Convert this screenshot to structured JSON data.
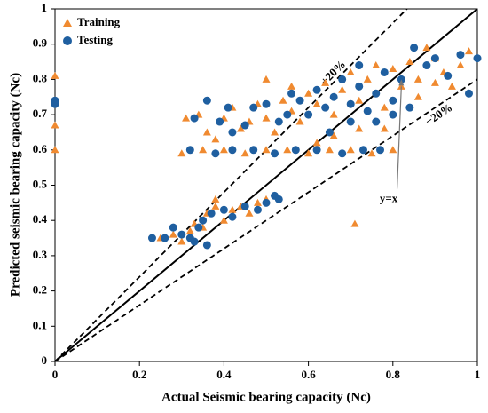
{
  "chart_data": {
    "type": "scatter",
    "xlabel": "Actual Seismic bearing capacity (Nc)",
    "ylabel": "Predicted seismic bearing capacity (Nc)",
    "xlim": [
      0,
      1
    ],
    "ylim": [
      0,
      1
    ],
    "xticks": [
      0,
      0.2,
      0.4,
      0.6,
      0.8,
      1
    ],
    "yticks": [
      0,
      0.1,
      0.2,
      0.3,
      0.4,
      0.5,
      0.6,
      0.7,
      0.8,
      0.9,
      1
    ],
    "legend": "upper left",
    "reference_lines": [
      {
        "slope": 1,
        "dashed": false
      },
      {
        "slope": 1.2,
        "dashed": true,
        "label": "+20%"
      },
      {
        "slope": 0.8,
        "dashed": true,
        "label": "−20%"
      }
    ],
    "annotation": "y=x",
    "series": [
      {
        "name": "Training",
        "color": "#f08a30",
        "marker": "triangle",
        "x": [
          0,
          0,
          0,
          0.25,
          0.28,
          0.3,
          0.32,
          0.35,
          0.36,
          0.38,
          0.4,
          0.42,
          0.44,
          0.46,
          0.48,
          0.5,
          0.38,
          0.33,
          0.3,
          0.35,
          0.4,
          0.45,
          0.5,
          0.55,
          0.6,
          0.65,
          0.7,
          0.75,
          0.8,
          0.31,
          0.34,
          0.36,
          0.38,
          0.4,
          0.42,
          0.44,
          0.46,
          0.48,
          0.5,
          0.52,
          0.54,
          0.56,
          0.58,
          0.6,
          0.62,
          0.64,
          0.66,
          0.68,
          0.7,
          0.72,
          0.74,
          0.76,
          0.78,
          0.8,
          0.82,
          0.84,
          0.86,
          0.88,
          0.9,
          0.92,
          0.94,
          0.96,
          0.98,
          0.5,
          0.56,
          0.66,
          0.72,
          0.71,
          0.78,
          0.62,
          0.86,
          0.9
        ],
        "y": [
          0.6,
          0.67,
          0.81,
          0.35,
          0.36,
          0.34,
          0.37,
          0.38,
          0.42,
          0.44,
          0.4,
          0.43,
          0.44,
          0.42,
          0.45,
          0.46,
          0.46,
          0.39,
          0.59,
          0.6,
          0.6,
          0.59,
          0.6,
          0.6,
          0.59,
          0.6,
          0.6,
          0.59,
          0.6,
          0.69,
          0.7,
          0.65,
          0.63,
          0.69,
          0.72,
          0.66,
          0.68,
          0.73,
          0.69,
          0.65,
          0.74,
          0.71,
          0.68,
          0.76,
          0.73,
          0.79,
          0.7,
          0.77,
          0.82,
          0.74,
          0.8,
          0.84,
          0.72,
          0.83,
          0.78,
          0.85,
          0.8,
          0.89,
          0.86,
          0.82,
          0.78,
          0.84,
          0.88,
          0.8,
          0.78,
          0.64,
          0.66,
          0.39,
          0.66,
          0.62,
          0.75,
          0.79
        ]
      },
      {
        "name": "Testing",
        "color": "#1f5fa0",
        "marker": "circle",
        "x": [
          0,
          0,
          0.23,
          0.26,
          0.28,
          0.3,
          0.32,
          0.34,
          0.35,
          0.37,
          0.4,
          0.42,
          0.45,
          0.48,
          0.5,
          0.52,
          0.53,
          0.36,
          0.33,
          0.32,
          0.38,
          0.42,
          0.47,
          0.52,
          0.57,
          0.62,
          0.68,
          0.73,
          0.77,
          0.33,
          0.36,
          0.39,
          0.41,
          0.45,
          0.47,
          0.5,
          0.53,
          0.55,
          0.58,
          0.6,
          0.62,
          0.64,
          0.66,
          0.68,
          0.7,
          0.72,
          0.74,
          0.76,
          0.78,
          0.8,
          0.82,
          0.84,
          0.85,
          0.88,
          0.9,
          0.93,
          0.96,
          0.98,
          1,
          0.72,
          0.7,
          0.76,
          0.8,
          0.65,
          0.56,
          0.42
        ],
        "y": [
          0.74,
          0.73,
          0.35,
          0.35,
          0.38,
          0.36,
          0.35,
          0.38,
          0.4,
          0.42,
          0.43,
          0.41,
          0.44,
          0.43,
          0.45,
          0.47,
          0.46,
          0.33,
          0.34,
          0.6,
          0.59,
          0.6,
          0.6,
          0.59,
          0.6,
          0.6,
          0.59,
          0.6,
          0.6,
          0.69,
          0.74,
          0.68,
          0.72,
          0.67,
          0.72,
          0.73,
          0.68,
          0.7,
          0.74,
          0.7,
          0.77,
          0.72,
          0.75,
          0.8,
          0.73,
          0.78,
          0.71,
          0.76,
          0.82,
          0.74,
          0.8,
          0.72,
          0.89,
          0.84,
          0.86,
          0.81,
          0.87,
          0.76,
          0.86,
          0.84,
          0.68,
          0.68,
          0.7,
          0.65,
          0.76,
          0.65
        ]
      }
    ]
  }
}
